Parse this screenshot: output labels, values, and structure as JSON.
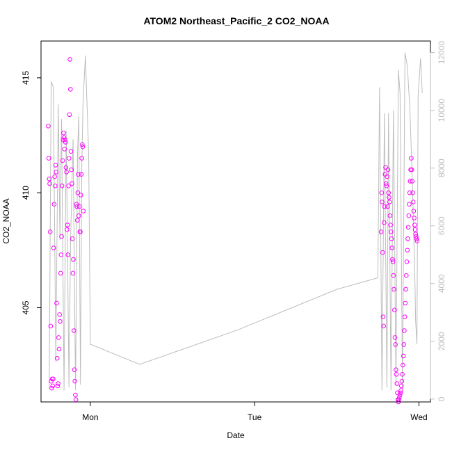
{
  "chart_data": {
    "type": "scatter",
    "title": "ATOM2 Northeast_Pacific_2 CO2_NOAA",
    "xlabel": "Date",
    "ylabel": "CO2_NOAA",
    "x_ticks": [
      {
        "label": "Mon",
        "value": 1.0
      },
      {
        "label": "Tue",
        "value": 2.0
      },
      {
        "label": "Wed",
        "value": 3.0
      }
    ],
    "xlim": [
      0.7,
      3.07
    ],
    "ylim": [
      400.9,
      416.6
    ],
    "y_ticks": [
      405,
      410,
      415
    ],
    "y2lim": [
      -100,
      12400
    ],
    "y2_ticks": [
      0,
      2000,
      4000,
      6000,
      8000,
      10000,
      12000
    ],
    "grid": false,
    "legend": "none",
    "colors": {
      "points": "#ff00ff",
      "altitude_line": "#bdbdbd"
    },
    "series": [
      {
        "axis": "left",
        "style": "open-circle",
        "x": [
          0.744,
          0.747,
          0.75,
          0.753,
          0.756,
          0.759,
          0.762,
          0.765,
          0.768,
          0.771,
          0.774,
          0.777,
          0.78,
          0.783,
          0.786,
          0.789,
          0.792,
          0.795,
          0.798,
          0.801,
          0.804,
          0.807,
          0.81,
          0.813,
          0.816,
          0.819,
          0.822,
          0.825,
          0.828,
          0.831,
          0.834,
          0.837,
          0.84,
          0.843,
          0.846,
          0.849,
          0.852,
          0.855,
          0.858,
          0.861,
          0.864,
          0.867,
          0.87,
          0.873,
          0.876,
          0.879,
          0.882,
          0.885,
          0.888,
          0.891,
          0.894,
          0.897,
          0.9,
          0.903,
          0.906,
          0.909,
          0.912,
          0.915,
          0.918,
          0.921,
          0.924,
          0.927,
          0.93,
          0.933,
          0.936,
          0.939,
          0.942,
          0.945,
          0.948,
          0.951,
          0.954,
          0.957,
          2.77,
          2.773,
          2.776,
          2.779,
          2.782,
          2.785,
          2.788,
          2.791,
          2.794,
          2.797,
          2.8,
          2.803,
          2.806,
          2.809,
          2.812,
          2.815,
          2.818,
          2.821,
          2.824,
          2.827,
          2.83,
          2.833,
          2.836,
          2.839,
          2.842,
          2.845,
          2.848,
          2.851,
          2.854,
          2.857,
          2.86,
          2.863,
          2.866,
          2.869,
          2.872,
          2.875,
          2.878,
          2.881,
          2.884,
          2.887,
          2.89,
          2.893,
          2.896,
          2.899,
          2.902,
          2.905,
          2.908,
          2.911,
          2.914,
          2.917,
          2.92,
          2.923,
          2.926,
          2.929,
          2.932,
          2.935,
          2.938,
          2.941,
          2.944,
          2.947,
          2.95,
          2.953,
          2.956,
          2.959,
          2.962,
          2.965,
          2.968,
          2.971,
          2.974,
          2.977,
          2.98,
          2.983,
          2.986,
          2.989
        ],
        "y": [
          412.9,
          411.5,
          410.6,
          410.4,
          408.3,
          404.2,
          401.8,
          401.5,
          401.9,
          401.6,
          401.9,
          407.6,
          409.5,
          410.7,
          410.3,
          411.2,
          410.9,
          405.2,
          402.8,
          401.6,
          401.7,
          403.7,
          403.2,
          404.7,
          404.4,
          406.5,
          407.3,
          408.1,
          410.3,
          411.4,
          412.3,
          412.6,
          412.4,
          411.9,
          412.3,
          412.2,
          411.1,
          410.9,
          408.4,
          408.6,
          407.3,
          410.3,
          411.5,
          413.4,
          415.8,
          414.5,
          411.8,
          411.0,
          410.4,
          408.0,
          406.5,
          407.1,
          404.0,
          402.3,
          401.8,
          401.2,
          401.0,
          409.5,
          409.4,
          408.8,
          410.0,
          410.8,
          409.0,
          409.4,
          408.3,
          408.3,
          409.9,
          410.8,
          411.5,
          412.1,
          412.0,
          409.2,
          408.3,
          410.0,
          409.6,
          407.4,
          404.6,
          404.2,
          408.7,
          409.4,
          410.8,
          411.1,
          410.4,
          410.3,
          410.7,
          409.4,
          411.0,
          410.0,
          409.8,
          409.6,
          409.0,
          408.6,
          408.3,
          408.0,
          407.6,
          407.1,
          407.0,
          406.4,
          405.8,
          404.9,
          403.7,
          403.4,
          402.3,
          402.1,
          401.7,
          401.3,
          401.0,
          400.9,
          401.0,
          401.1,
          401.2,
          401.3,
          401.4,
          401.6,
          401.8,
          402.1,
          402.5,
          402.9,
          403.4,
          404.0,
          404.6,
          405.2,
          405.8,
          406.4,
          407.0,
          407.5,
          408.0,
          408.5,
          409.0,
          409.5,
          410.0,
          410.5,
          411.0,
          411.5,
          411.0,
          410.5,
          410.0,
          409.6,
          409.2,
          408.9,
          408.6,
          408.4,
          408.2,
          408.1,
          408.0,
          407.9
        ]
      },
      {
        "axis": "right",
        "style": "line",
        "x": [
          0.75,
          0.762,
          0.775,
          0.79,
          0.805,
          0.815,
          0.825,
          0.84,
          0.853,
          0.87,
          0.88,
          0.895,
          0.91,
          0.922,
          0.93,
          0.94,
          0.948,
          0.955,
          0.97,
          0.99,
          1.0,
          1.3,
          1.6,
          1.9,
          2.2,
          2.5,
          2.75,
          2.76,
          2.775,
          2.79,
          2.805,
          2.815,
          2.83,
          2.845,
          2.86,
          2.875,
          2.885,
          2.9,
          2.915,
          2.93,
          2.945,
          2.96,
          2.975,
          2.98,
          2.988,
          2.995,
          3.01,
          3.02
        ],
        "y": [
          400,
          11000,
          10800,
          1300,
          10200,
          5500,
          9700,
          300,
          9300,
          400,
          5500,
          9000,
          300,
          8500,
          9800,
          500,
          8000,
          10200,
          11900,
          8500,
          1900,
          1200,
          1800,
          2400,
          3100,
          3800,
          4200,
          10800,
          300,
          9900,
          400,
          9900,
          300,
          10000,
          500,
          11400,
          10600,
          300,
          12000,
          11500,
          10000,
          7500,
          4200,
          2700,
          1900,
          10500,
          11800,
          10600
        ]
      }
    ]
  }
}
